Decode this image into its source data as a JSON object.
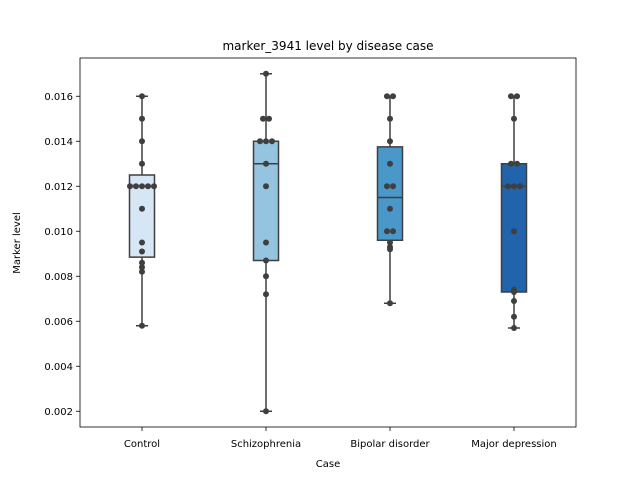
{
  "chart_data": {
    "type": "box",
    "title": "marker_3941 level by disease case",
    "xlabel": "Case",
    "ylabel": "Marker level",
    "ylim": [
      0.0013,
      0.0177
    ],
    "yticks": [
      "0.002",
      "0.004",
      "0.006",
      "0.008",
      "0.010",
      "0.012",
      "0.014",
      "0.016"
    ],
    "categories": [
      "Control",
      "Schizophrenia",
      "Bipolar disorder",
      "Major depression"
    ],
    "colors": [
      "#d7e6f5",
      "#94c4df",
      "#4a98c9",
      "#2164ab"
    ],
    "box_edge_color": "#3f3f3f",
    "point_color": "#3f3f3f",
    "boxes": [
      {
        "name": "Control",
        "whislo": 0.0058,
        "q1": 0.00885,
        "med": 0.012,
        "q3": 0.0125,
        "whishi": 0.016
      },
      {
        "name": "Schizophrenia",
        "whislo": 0.002,
        "q1": 0.0087,
        "med": 0.013,
        "q3": 0.014,
        "whishi": 0.017
      },
      {
        "name": "Bipolar disorder",
        "whislo": 0.0068,
        "q1": 0.0096,
        "med": 0.0115,
        "q3": 0.01375,
        "whishi": 0.016
      },
      {
        "name": "Major depression",
        "whislo": 0.0057,
        "q1": 0.0073,
        "med": 0.012,
        "q3": 0.013,
        "whishi": 0.016
      }
    ],
    "points": [
      [
        0.016,
        0.015,
        0.014,
        0.013,
        0.012,
        0.012,
        0.012,
        0.012,
        0.012,
        0.011,
        0.0095,
        0.0091,
        0.0086,
        0.0084,
        0.0082,
        0.0058
      ],
      [
        0.017,
        0.015,
        0.015,
        0.014,
        0.014,
        0.014,
        0.013,
        0.012,
        0.0095,
        0.0087,
        0.008,
        0.0072,
        0.002
      ],
      [
        0.016,
        0.016,
        0.015,
        0.014,
        0.013,
        0.012,
        0.012,
        0.011,
        0.01,
        0.01,
        0.0095,
        0.0093,
        0.0092,
        0.0068
      ],
      [
        0.016,
        0.016,
        0.015,
        0.013,
        0.013,
        0.012,
        0.012,
        0.012,
        0.01,
        0.0074,
        0.0073,
        0.0069,
        0.0062,
        0.0057
      ]
    ]
  }
}
